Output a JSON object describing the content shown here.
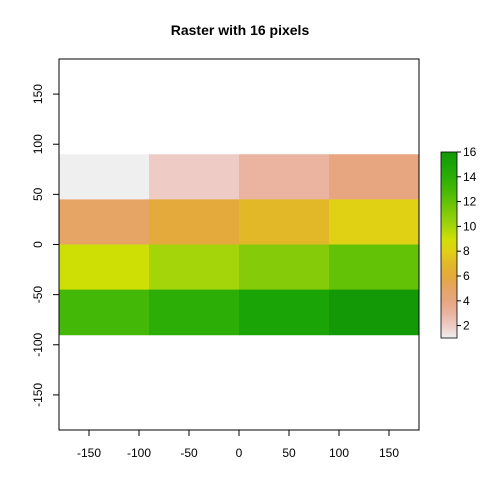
{
  "chart_data": {
    "type": "heatmap",
    "title": "Raster with 16 pixels",
    "xlabel": "",
    "ylabel": "",
    "xlim": [
      -180,
      180
    ],
    "ylim": [
      -185,
      185
    ],
    "x_ticks": [
      -150,
      -100,
      -50,
      0,
      50,
      100,
      150
    ],
    "y_ticks": [
      -150,
      -100,
      -50,
      0,
      50,
      100,
      150
    ],
    "cells": [
      {
        "row": 1,
        "col": 1,
        "value": 1,
        "color": "#EFEFEF"
      },
      {
        "row": 1,
        "col": 2,
        "value": 2,
        "color": "#EECBC4"
      },
      {
        "row": 1,
        "col": 3,
        "value": 3,
        "color": "#EAB4A0"
      },
      {
        "row": 1,
        "col": 4,
        "value": 4,
        "color": "#E7A67F"
      },
      {
        "row": 2,
        "col": 1,
        "value": 5,
        "color": "#E6A564"
      },
      {
        "row": 2,
        "col": 2,
        "value": 6,
        "color": "#E4AA3B"
      },
      {
        "row": 2,
        "col": 3,
        "value": 7,
        "color": "#E2B829"
      },
      {
        "row": 2,
        "col": 4,
        "value": 8,
        "color": "#E0D115"
      },
      {
        "row": 3,
        "col": 1,
        "value": 9,
        "color": "#CDDF05"
      },
      {
        "row": 3,
        "col": 2,
        "value": 10,
        "color": "#A4D50B"
      },
      {
        "row": 3,
        "col": 3,
        "value": 11,
        "color": "#85CB09"
      },
      {
        "row": 3,
        "col": 4,
        "value": 12,
        "color": "#63C206"
      },
      {
        "row": 4,
        "col": 1,
        "value": 13,
        "color": "#43B806"
      },
      {
        "row": 4,
        "col": 2,
        "value": 14,
        "color": "#2CAE06"
      },
      {
        "row": 4,
        "col": 3,
        "value": 15,
        "color": "#1BA406"
      },
      {
        "row": 4,
        "col": 4,
        "value": 16,
        "color": "#149906"
      }
    ],
    "raster_extent": {
      "xmin": -180,
      "xmax": 180,
      "ymin": -90,
      "ymax": 90
    },
    "legend": {
      "position": "right",
      "min": 1,
      "max": 16,
      "ticks": [
        2,
        4,
        6,
        8,
        10,
        12,
        14,
        16
      ],
      "gradient": [
        "#EFEFEF",
        "#EECBC4",
        "#EAB4A0",
        "#E7A67F",
        "#E6A564",
        "#E4AA3B",
        "#E2B829",
        "#E0D115",
        "#CDDF05",
        "#A4D50B",
        "#85CB09",
        "#63C206",
        "#43B806",
        "#2CAE06",
        "#1BA406",
        "#149906"
      ]
    }
  }
}
